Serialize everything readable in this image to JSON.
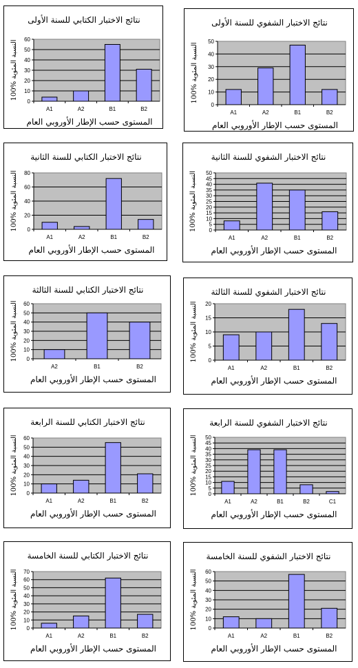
{
  "chart_data": [
    {
      "type": "bar",
      "title": "نتائج الاختبار الكتابي للسنة الأولى",
      "xlabel": "المستوى حسب الإطار الأوروبي العام",
      "ylabel": "النسبة المئوية %100",
      "categories": [
        "A1",
        "A2",
        "B1",
        "B2"
      ],
      "values": [
        4,
        10,
        55,
        31
      ],
      "ylim": [
        0,
        60
      ],
      "yticks": [
        0,
        10,
        20,
        30,
        40,
        50,
        60
      ],
      "grid": true,
      "bar_color": "#9999ff",
      "plot_bg": "#c0c0c0"
    },
    {
      "type": "bar",
      "title": "نتائج الاختبار الشفوي للسنة الأولى",
      "xlabel": "المستوى حسب الإطار الأوروبي العام",
      "ylabel": "النسبة المئوية %100",
      "categories": [
        "A1",
        "A2",
        "B1",
        "B2"
      ],
      "values": [
        12,
        29,
        47,
        12
      ],
      "ylim": [
        0,
        50
      ],
      "yticks": [
        0,
        10,
        20,
        30,
        40,
        50
      ],
      "grid": true,
      "bar_color": "#9999ff",
      "plot_bg": "#c0c0c0"
    },
    {
      "type": "bar",
      "title": "نتائج الاختبار الكتابي للسنة الثانية",
      "xlabel": "المستوى حسب الإطار الأوروبي العام",
      "ylabel": "النسبة المئوية %100",
      "categories": [
        "A1",
        "A2",
        "B1",
        "B2"
      ],
      "values": [
        10,
        4,
        72,
        14
      ],
      "ylim": [
        0,
        80
      ],
      "yticks": [
        0,
        20,
        40,
        60,
        80
      ],
      "grid": true,
      "bar_color": "#9999ff",
      "plot_bg": "#c0c0c0"
    },
    {
      "type": "bar",
      "title": "نتائج الاختبار الشفوي للسنة الثانية",
      "xlabel": "المستوى حسب الإطار الأوروبي العام",
      "ylabel": "النسبة المئوية %100",
      "categories": [
        "A1",
        "A2",
        "B1",
        "B2"
      ],
      "values": [
        8,
        41,
        35,
        16
      ],
      "ylim": [
        0,
        50
      ],
      "yticks": [
        0,
        5,
        10,
        15,
        20,
        25,
        30,
        35,
        40,
        45,
        50
      ],
      "grid": true,
      "bar_color": "#9999ff",
      "plot_bg": "#c0c0c0"
    },
    {
      "type": "bar",
      "title": "نتائج الاختبار الكتابي للسنة الثالثة",
      "xlabel": "المستوى حسب الإطار الأوروبي العام",
      "ylabel": "النسبة المئوية %100",
      "categories": [
        "A2",
        "B1",
        "B2"
      ],
      "values": [
        10,
        50,
        40
      ],
      "ylim": [
        0,
        60
      ],
      "yticks": [
        0,
        10,
        20,
        30,
        40,
        50,
        60
      ],
      "grid": true,
      "bar_color": "#9999ff",
      "plot_bg": "#c0c0c0"
    },
    {
      "type": "bar",
      "title": "نتائج الاختبار الشفوي للسنة الثالثة",
      "xlabel": "المستوى حسب الإطار الأوروبي العام",
      "ylabel": "النسبة المئوية %100",
      "categories": [
        "A1",
        "A2",
        "B1",
        "B2"
      ],
      "values": [
        9,
        10,
        18,
        13
      ],
      "ylim": [
        0,
        20
      ],
      "yticks": [
        0,
        5,
        10,
        15,
        20
      ],
      "grid": true,
      "bar_color": "#9999ff",
      "plot_bg": "#c0c0c0"
    },
    {
      "type": "bar",
      "title": "نتائج الاختبار الكتابي للسنة الرابعة",
      "xlabel": "المستوى حسب الإطار الأوروبي العام",
      "ylabel": "النسبة المئوية %100",
      "categories": [
        "A1",
        "A2",
        "B1",
        "B2"
      ],
      "values": [
        10,
        14,
        55,
        21
      ],
      "ylim": [
        0,
        60
      ],
      "yticks": [
        0,
        10,
        20,
        30,
        40,
        50,
        60
      ],
      "grid": true,
      "bar_color": "#9999ff",
      "plot_bg": "#c0c0c0"
    },
    {
      "type": "bar",
      "title": "نتائج الاختبار الشفوي للسنة الرابعة",
      "xlabel": "المستوى حسب الإطار الأوروبي العام",
      "ylabel": "النسبة المئوية %100",
      "categories": [
        "A1",
        "A2",
        "B1",
        "B2",
        "C1"
      ],
      "values": [
        11,
        39,
        39,
        8,
        2
      ],
      "ylim": [
        0,
        50
      ],
      "yticks": [
        0,
        5,
        10,
        15,
        20,
        25,
        30,
        35,
        40,
        45,
        50
      ],
      "grid": true,
      "bar_color": "#9999ff",
      "plot_bg": "#c0c0c0"
    },
    {
      "type": "bar",
      "title": "نتائج الاختبار الكتابي للسنة الخامسة",
      "xlabel": "المستوى حسب الإطار الأوروبي العام",
      "ylabel": "النسبة المئوية %100",
      "categories": [
        "A1",
        "A2",
        "B1",
        "B2"
      ],
      "values": [
        6,
        15,
        62,
        17
      ],
      "ylim": [
        0,
        70
      ],
      "yticks": [
        0,
        10,
        20,
        30,
        40,
        50,
        60,
        70
      ],
      "grid": true,
      "bar_color": "#9999ff",
      "plot_bg": "#c0c0c0"
    },
    {
      "type": "bar",
      "title": "نتائج الاختبار الشفوي للسنة الخامسة",
      "xlabel": "المستوى حسب الإطار الأوروبي العام",
      "ylabel": "النسبة المئوية %100",
      "categories": [
        "A1",
        "A2",
        "B1",
        "B2"
      ],
      "values": [
        12,
        10,
        57,
        21
      ],
      "ylim": [
        0,
        60
      ],
      "yticks": [
        0,
        10,
        20,
        30,
        40,
        50,
        60
      ],
      "grid": true,
      "bar_color": "#9999ff",
      "plot_bg": "#c0c0c0"
    }
  ]
}
